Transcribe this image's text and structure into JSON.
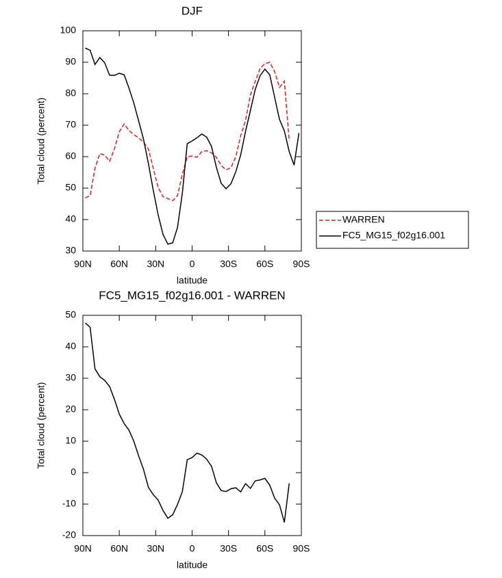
{
  "chart_data": [
    {
      "type": "line",
      "title": "DJF",
      "xlabel": "latitude",
      "ylabel": "Total cloud (percent)",
      "x": [
        88,
        84,
        80,
        76,
        72,
        68,
        64,
        60,
        56,
        52,
        48,
        44,
        40,
        36,
        32,
        28,
        24,
        20,
        16,
        12,
        8,
        4,
        0,
        -4,
        -8,
        -12,
        -16,
        -20,
        -24,
        -28,
        -32,
        -36,
        -40,
        -44,
        -48,
        -52,
        -56,
        -60,
        -64,
        -68,
        -72,
        -76,
        -80,
        -84,
        -88
      ],
      "series": [
        {
          "name": "WARREN",
          "color": "#e41a1c",
          "linestyle": "dashed",
          "values": [
            46.9,
            47.6,
            56.3,
            61,
            60.5,
            58.5,
            62.5,
            67.9,
            70.4,
            68.3,
            67,
            66,
            64.5,
            62.5,
            56.3,
            50.2,
            47.3,
            46.7,
            46,
            47.6,
            54.5,
            60,
            60.2,
            59.8,
            61.6,
            61.9,
            61.2,
            59.8,
            57.2,
            55.8,
            56.5,
            60,
            66.6,
            71.5,
            79.6,
            84,
            88,
            89.6,
            90,
            87,
            82,
            84,
            65,
            null,
            null
          ]
        },
        {
          "name": "FC5_MG15_f02g16.001",
          "color": "#000000",
          "linestyle": "solid",
          "values": [
            94.5,
            93.8,
            89.3,
            91.5,
            89.8,
            85.9,
            85.8,
            86.5,
            86,
            81.8,
            77,
            71.3,
            65.5,
            57.8,
            49.3,
            41.5,
            35.3,
            32.2,
            32.6,
            37.5,
            48.5,
            64.1,
            65,
            66,
            67.2,
            66.2,
            63.2,
            56.6,
            51.5,
            49.8,
            51.4,
            55.2,
            60.5,
            68,
            74.6,
            81.4,
            85.7,
            87.8,
            86,
            78.9,
            71.8,
            68.2,
            61.6,
            57.3,
            67.5
          ]
        }
      ],
      "xlim": [
        90,
        -90
      ],
      "xticks": [
        {
          "value": 90,
          "label": "90N"
        },
        {
          "value": 60,
          "label": "60N"
        },
        {
          "value": 30,
          "label": "30N"
        },
        0,
        {
          "value": -30,
          "label": "30S"
        },
        {
          "value": -60,
          "label": "60S"
        },
        {
          "value": -90,
          "label": "90S"
        }
      ],
      "ylim": [
        30,
        100
      ],
      "yticks": [
        30,
        40,
        50,
        60,
        70,
        80,
        90,
        100
      ],
      "legend": "right"
    },
    {
      "type": "line",
      "title": "FC5_MG15_f02g16.001 - WARREN",
      "xlabel": "latitude",
      "ylabel": "Total cloud (percent)",
      "x": [
        88,
        84,
        80,
        76,
        72,
        68,
        64,
        60,
        56,
        52,
        48,
        44,
        40,
        36,
        32,
        28,
        24,
        20,
        16,
        12,
        8,
        4,
        0,
        -4,
        -8,
        -12,
        -16,
        -20,
        -24,
        -28,
        -32,
        -36,
        -40,
        -44,
        -48,
        -52,
        -56,
        -60,
        -64,
        -68,
        -72,
        -76,
        -80,
        -84,
        -88
      ],
      "color": "#000000",
      "values": [
        47.6,
        46.2,
        33,
        30.5,
        29.3,
        27.4,
        23.3,
        18.6,
        15.6,
        13.5,
        10,
        5.3,
        1,
        -4.7,
        -7,
        -8.7,
        -12,
        -14.5,
        -13.4,
        -10.1,
        -6,
        4.1,
        4.8,
        6.2,
        5.6,
        4.3,
        2,
        -3.2,
        -5.7,
        -6,
        -5.1,
        -4.8,
        -6.1,
        -3.5,
        -5,
        -2.6,
        -2.3,
        -1.8,
        -4,
        -8.1,
        -10.2,
        -15.8,
        -3.4,
        null,
        null
      ],
      "xlim": [
        90,
        -90
      ],
      "xticks": [
        {
          "value": 90,
          "label": "90N"
        },
        {
          "value": 60,
          "label": "60N"
        },
        {
          "value": 30,
          "label": "30N"
        },
        0,
        {
          "value": -30,
          "label": "30S"
        },
        {
          "value": -60,
          "label": "60S"
        },
        {
          "value": -90,
          "label": "90S"
        }
      ],
      "ylim": [
        -20,
        50
      ],
      "yticks": [
        -20,
        -10,
        0,
        10,
        20,
        30,
        40,
        50
      ]
    }
  ]
}
